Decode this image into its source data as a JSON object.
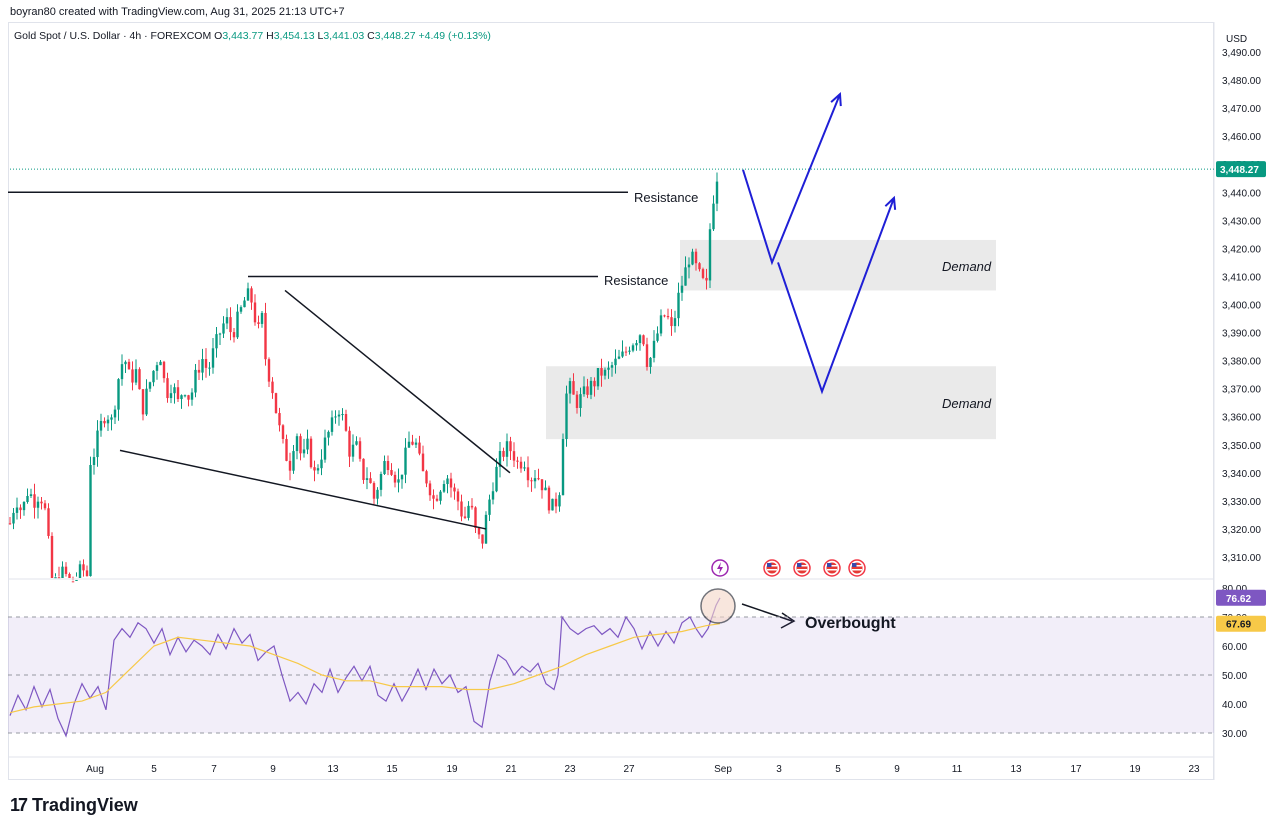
{
  "header": {
    "credit": "boyran80 created with TradingView.com, Aug 31, 2025 21:13 UTC+7"
  },
  "legend": {
    "symbol": "Gold Spot / U.S. Dollar · 4h · FOREXCOM",
    "open_label": "O",
    "open": "3,443.77",
    "high_label": "H",
    "high": "3,454.13",
    "low_label": "L",
    "low": "3,441.03",
    "close_label": "C",
    "close": "3,448.27",
    "change": "+4.49 (+0.13%)"
  },
  "brand": {
    "name": "TradingView"
  },
  "colors": {
    "up": "#089981",
    "down": "#f23645",
    "rsi": "#7e57c2",
    "rsi_ma": "#f7c948",
    "arrow": "#1f1fd6"
  },
  "chart_data": {
    "type": "candlestick",
    "currency": "USD",
    "y_ticks": [
      "3,490.00",
      "3,480.00",
      "3,470.00",
      "3,460.00",
      "3,450.00",
      "3,440.00",
      "3,430.00",
      "3,420.00",
      "3,410.00",
      "3,400.00",
      "3,390.00",
      "3,380.00",
      "3,370.00",
      "3,360.00",
      "3,350.00",
      "3,340.00",
      "3,330.00",
      "3,320.00",
      "3,310.00"
    ],
    "y_tick_values": [
      3490,
      3480,
      3470,
      3460,
      3450,
      3440,
      3430,
      3420,
      3410,
      3400,
      3390,
      3380,
      3370,
      3360,
      3350,
      3340,
      3330,
      3320,
      3310
    ],
    "ylim": [
      3303.5,
      3494
    ],
    "x_ticks": [
      "Aug",
      "5",
      "7",
      "9",
      "13",
      "15",
      "19",
      "21",
      "23",
      "27",
      "Sep",
      "3",
      "5",
      "9",
      "11",
      "13",
      "17",
      "19",
      "23"
    ],
    "last_price": 3448.27,
    "last_price_label": "3,448.27",
    "price_path": [
      [
        0,
        3322
      ],
      [
        6,
        3331
      ],
      [
        12,
        3326
      ],
      [
        18,
        3334
      ],
      [
        24,
        3330
      ],
      [
        30,
        3333
      ],
      [
        36,
        3325
      ],
      [
        42,
        3300
      ],
      [
        48,
        3302
      ],
      [
        54,
        3305
      ],
      [
        60,
        3300
      ],
      [
        66,
        3302
      ],
      [
        72,
        3306
      ],
      [
        78,
        3303
      ],
      [
        80,
        3344
      ],
      [
        84,
        3347
      ],
      [
        90,
        3356
      ],
      [
        96,
        3362
      ],
      [
        102,
        3358
      ],
      [
        108,
        3373
      ],
      [
        114,
        3382
      ],
      [
        120,
        3373
      ],
      [
        126,
        3376
      ],
      [
        132,
        3362
      ],
      [
        138,
        3370
      ],
      [
        144,
        3377
      ],
      [
        150,
        3383
      ],
      [
        156,
        3368
      ],
      [
        162,
        3372
      ],
      [
        168,
        3365
      ],
      [
        174,
        3371
      ],
      [
        180,
        3366
      ],
      [
        186,
        3375
      ],
      [
        192,
        3381
      ],
      [
        198,
        3376
      ],
      [
        204,
        3384
      ],
      [
        210,
        3390
      ],
      [
        216,
        3395
      ],
      [
        222,
        3389
      ],
      [
        228,
        3395
      ],
      [
        234,
        3401
      ],
      [
        240,
        3404
      ],
      [
        244,
        3397
      ],
      [
        248,
        3390
      ],
      [
        252,
        3395
      ],
      [
        256,
        3379
      ],
      [
        262,
        3371
      ],
      [
        268,
        3358
      ],
      [
        274,
        3348
      ],
      [
        280,
        3343
      ],
      [
        286,
        3356
      ],
      [
        292,
        3344
      ],
      [
        298,
        3350
      ],
      [
        304,
        3339
      ],
      [
        310,
        3345
      ],
      [
        316,
        3352
      ],
      [
        322,
        3357
      ],
      [
        328,
        3364
      ],
      [
        334,
        3358
      ],
      [
        340,
        3347
      ],
      [
        346,
        3350
      ],
      [
        352,
        3339
      ],
      [
        358,
        3339
      ],
      [
        364,
        3331
      ],
      [
        370,
        3338
      ],
      [
        376,
        3345
      ],
      [
        382,
        3342
      ],
      [
        388,
        3336
      ],
      [
        394,
        3344
      ],
      [
        400,
        3352
      ],
      [
        406,
        3350
      ],
      [
        412,
        3340
      ],
      [
        418,
        3337
      ],
      [
        424,
        3330
      ],
      [
        430,
        3335
      ],
      [
        436,
        3340
      ],
      [
        442,
        3334
      ],
      [
        448,
        3330
      ],
      [
        454,
        3323
      ],
      [
        460,
        3330
      ],
      [
        466,
        3318
      ],
      [
        472,
        3315
      ],
      [
        478,
        3328
      ],
      [
        484,
        3338
      ],
      [
        490,
        3345
      ],
      [
        496,
        3349
      ],
      [
        502,
        3348
      ],
      [
        508,
        3343
      ],
      [
        514,
        3345
      ],
      [
        520,
        3338
      ],
      [
        526,
        3340
      ],
      [
        532,
        3336
      ],
      [
        538,
        3330
      ],
      [
        544,
        3327
      ],
      [
        550,
        3335
      ],
      [
        554,
        3361
      ],
      [
        558,
        3372
      ],
      [
        562,
        3368
      ],
      [
        566,
        3365
      ],
      [
        572,
        3367
      ],
      [
        578,
        3370
      ],
      [
        584,
        3372
      ],
      [
        590,
        3376
      ],
      [
        596,
        3375
      ],
      [
        602,
        3378
      ],
      [
        608,
        3380
      ],
      [
        614,
        3382
      ],
      [
        620,
        3386
      ],
      [
        626,
        3388
      ],
      [
        632,
        3391
      ],
      [
        638,
        3378
      ],
      [
        644,
        3385
      ],
      [
        650,
        3393
      ],
      [
        656,
        3397
      ],
      [
        662,
        3390
      ],
      [
        668,
        3402
      ],
      [
        674,
        3410
      ],
      [
        680,
        3418
      ],
      [
        686,
        3413
      ],
      [
        692,
        3408
      ],
      [
        698,
        3406
      ],
      [
        700,
        3427
      ],
      [
        704,
        3440
      ],
      [
        708,
        3448
      ]
    ],
    "rsi": {
      "ticks": [
        "80.00",
        "70.00",
        "60.00",
        "50.00",
        "40.00",
        "30.00"
      ],
      "tick_values": [
        80,
        70,
        60,
        50,
        40,
        30
      ],
      "ylim": [
        26,
        81.5
      ],
      "upper": 70,
      "middle": 50,
      "lower": 30,
      "value": 76.62,
      "value_label": "76.62",
      "ma": 67.69,
      "ma_label": "67.69",
      "line": [
        [
          0,
          36
        ],
        [
          8,
          43
        ],
        [
          16,
          38
        ],
        [
          24,
          46
        ],
        [
          32,
          39
        ],
        [
          40,
          45
        ],
        [
          48,
          35
        ],
        [
          56,
          29
        ],
        [
          64,
          40
        ],
        [
          72,
          47
        ],
        [
          80,
          42
        ],
        [
          88,
          46
        ],
        [
          96,
          38
        ],
        [
          104,
          62
        ],
        [
          112,
          66
        ],
        [
          120,
          63
        ],
        [
          128,
          68
        ],
        [
          136,
          66
        ],
        [
          144,
          61
        ],
        [
          152,
          66
        ],
        [
          160,
          57
        ],
        [
          168,
          63
        ],
        [
          176,
          58
        ],
        [
          184,
          62
        ],
        [
          192,
          60
        ],
        [
          200,
          57
        ],
        [
          208,
          64
        ],
        [
          216,
          59
        ],
        [
          224,
          66
        ],
        [
          232,
          61
        ],
        [
          240,
          64
        ],
        [
          248,
          55
        ],
        [
          256,
          58
        ],
        [
          264,
          60
        ],
        [
          272,
          50
        ],
        [
          280,
          41
        ],
        [
          288,
          44
        ],
        [
          296,
          40
        ],
        [
          304,
          47
        ],
        [
          312,
          44
        ],
        [
          320,
          52
        ],
        [
          328,
          44
        ],
        [
          336,
          49
        ],
        [
          344,
          53
        ],
        [
          352,
          48
        ],
        [
          360,
          53
        ],
        [
          368,
          43
        ],
        [
          376,
          41
        ],
        [
          384,
          47
        ],
        [
          392,
          41
        ],
        [
          400,
          46
        ],
        [
          408,
          52
        ],
        [
          416,
          45
        ],
        [
          424,
          52
        ],
        [
          432,
          47
        ],
        [
          440,
          50
        ],
        [
          448,
          44
        ],
        [
          456,
          46
        ],
        [
          464,
          34
        ],
        [
          472,
          32
        ],
        [
          480,
          48
        ],
        [
          488,
          57
        ],
        [
          496,
          55
        ],
        [
          504,
          50
        ],
        [
          512,
          53
        ],
        [
          520,
          51
        ],
        [
          528,
          54
        ],
        [
          536,
          47
        ],
        [
          544,
          45
        ],
        [
          548,
          50
        ],
        [
          552,
          70
        ],
        [
          560,
          66
        ],
        [
          568,
          64
        ],
        [
          576,
          66
        ],
        [
          584,
          67
        ],
        [
          592,
          64
        ],
        [
          600,
          66
        ],
        [
          608,
          63
        ],
        [
          616,
          70
        ],
        [
          624,
          66
        ],
        [
          632,
          59
        ],
        [
          640,
          65
        ],
        [
          648,
          60
        ],
        [
          656,
          65
        ],
        [
          664,
          61
        ],
        [
          672,
          68
        ],
        [
          680,
          70
        ],
        [
          686,
          66
        ],
        [
          692,
          63
        ],
        [
          698,
          66
        ],
        [
          706,
          74
        ],
        [
          710,
          76.6
        ]
      ],
      "ma_line": [
        [
          0,
          37
        ],
        [
          24,
          39
        ],
        [
          48,
          40
        ],
        [
          72,
          41
        ],
        [
          96,
          44
        ],
        [
          120,
          52
        ],
        [
          144,
          60
        ],
        [
          168,
          63
        ],
        [
          192,
          62
        ],
        [
          216,
          61
        ],
        [
          240,
          60
        ],
        [
          264,
          57
        ],
        [
          288,
          54
        ],
        [
          312,
          50
        ],
        [
          336,
          48
        ],
        [
          360,
          48
        ],
        [
          384,
          46
        ],
        [
          408,
          46
        ],
        [
          432,
          46
        ],
        [
          456,
          45
        ],
        [
          480,
          45
        ],
        [
          504,
          47
        ],
        [
          528,
          50
        ],
        [
          552,
          53
        ],
        [
          576,
          57
        ],
        [
          600,
          60
        ],
        [
          624,
          63
        ],
        [
          648,
          64
        ],
        [
          672,
          65
        ],
        [
          696,
          67
        ],
        [
          710,
          67.69
        ]
      ]
    }
  },
  "annotations": {
    "resistance_upper": "Resistance",
    "resistance_lower": "Resistance",
    "demand_upper": "Demand",
    "demand_lower": "Demand",
    "overbought": "Overbought",
    "resistance_levels": [
      3440,
      3410
    ],
    "demand_zones": [
      [
        3405,
        3423
      ],
      [
        3352,
        3378
      ]
    ],
    "wedge_top": [
      [
        275,
        3405
      ],
      [
        500,
        3340
      ]
    ],
    "wedge_bottom": [
      [
        110,
        3348
      ],
      [
        476,
        3320
      ]
    ],
    "arrow_paths": [
      [
        [
          743,
          3448
        ],
        [
          772,
          3415
        ],
        [
          840,
          3475
        ]
      ],
      [
        [
          778,
          3415
        ],
        [
          822,
          3369
        ],
        [
          894,
          3438
        ]
      ]
    ]
  },
  "event_icons": [
    "lightning-icon",
    "us-flag-icon",
    "us-flag-icon",
    "us-flag-icon",
    "us-flag-icon"
  ]
}
